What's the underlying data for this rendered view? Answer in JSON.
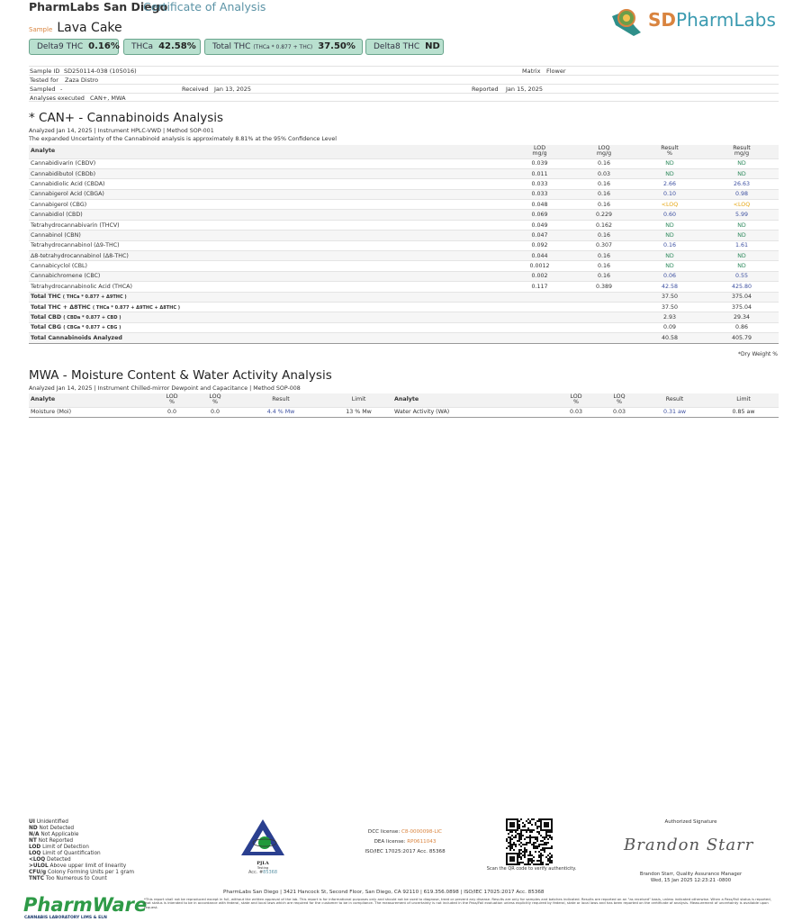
{
  "header": {
    "lab_name": "PharmLabs San Diego",
    "doc_title": "Certificate of Analysis",
    "sample_label": "Sample",
    "sample_name": "Lava Cake",
    "logo_text": "SDPharmLabs",
    "logo_arc_text": "PharmLabs"
  },
  "summary": [
    {
      "label": "Delta9 THC",
      "note": "",
      "value": "0.16%"
    },
    {
      "label": "THCa",
      "note": "",
      "value": "42.58%"
    },
    {
      "label": "Total THC",
      "note": "(THCa * 0.877 + THC)",
      "value": "37.50%"
    },
    {
      "label": "Delta8 THC",
      "note": "",
      "value": "ND"
    }
  ],
  "info": {
    "sample_id_label": "Sample ID",
    "sample_id": "SD250114-038 (105016)",
    "matrix_label": "Matrix",
    "matrix": "Flower",
    "tested_for_label": "Tested for",
    "tested_for": "Zaza Distro",
    "sampled_label": "Sampled",
    "sampled": "-",
    "received_label": "Received",
    "received": "Jan 13, 2025",
    "reported_label": "Reported",
    "reported": "Jan 15, 2025",
    "analyses_label": "Analyses executed",
    "analyses": "CAN+, MWA"
  },
  "can": {
    "title": "* CAN+ - Cannabinoids Analysis",
    "meta": "Analyzed Jan 14, 2025  | Instrument HPLC-VWD  | Method SOP-001",
    "uncertainty": "The expanded Uncertainty of the Cannabinoid analysis is approximately 8.81% at the 95% Confidence Level",
    "headers": {
      "analyte": "Analyte",
      "lod": "LOD",
      "lod_unit": "mg/g",
      "loq": "LOQ",
      "loq_unit": "mg/g",
      "res_pct": "Result",
      "res_pct_unit": "%",
      "res_mg": "Result",
      "res_mg_unit": "mg/g"
    },
    "rows": [
      {
        "analyte": "Cannabidivarin (CBDV)",
        "lod": "0.039",
        "loq": "0.16",
        "pct": "ND",
        "mg": "ND",
        "kind": "nd"
      },
      {
        "analyte": "Cannabidibutol (CBDb)",
        "lod": "0.011",
        "loq": "0.03",
        "pct": "ND",
        "mg": "ND",
        "kind": "nd"
      },
      {
        "analyte": "Cannabidiolic Acid (CBDA)",
        "lod": "0.033",
        "loq": "0.16",
        "pct": "2.66",
        "mg": "26.63",
        "kind": "val"
      },
      {
        "analyte": "Cannabigerol Acid (CBGA)",
        "lod": "0.033",
        "loq": "0.16",
        "pct": "0.10",
        "mg": "0.98",
        "kind": "val"
      },
      {
        "analyte": "Cannabigerol (CBG)",
        "lod": "0.048",
        "loq": "0.16",
        "pct": "<LOQ",
        "mg": "<LOQ",
        "kind": "loq"
      },
      {
        "analyte": "Cannabidiol (CBD)",
        "lod": "0.069",
        "loq": "0.229",
        "pct": "0.60",
        "mg": "5.99",
        "kind": "val"
      },
      {
        "analyte": "Tetrahydrocannabivarin (THCV)",
        "lod": "0.049",
        "loq": "0.162",
        "pct": "ND",
        "mg": "ND",
        "kind": "nd"
      },
      {
        "analyte": "Cannabinol (CBN)",
        "lod": "0.047",
        "loq": "0.16",
        "pct": "ND",
        "mg": "ND",
        "kind": "nd"
      },
      {
        "analyte": "Tetrahydrocannabinol (Δ9-THC)",
        "lod": "0.092",
        "loq": "0.307",
        "pct": "0.16",
        "mg": "1.61",
        "kind": "val"
      },
      {
        "analyte": "Δ8-tetrahydrocannabinol (Δ8-THC)",
        "lod": "0.044",
        "loq": "0.16",
        "pct": "ND",
        "mg": "ND",
        "kind": "nd"
      },
      {
        "analyte": "Cannabicyclol (CBL)",
        "lod": "0.0012",
        "loq": "0.16",
        "pct": "ND",
        "mg": "ND",
        "kind": "nd"
      },
      {
        "analyte": "Cannabichromene (CBC)",
        "lod": "0.002",
        "loq": "0.16",
        "pct": "0.06",
        "mg": "0.55",
        "kind": "val"
      },
      {
        "analyte": "Tetrahydrocannabinolic Acid (THCA)",
        "lod": "0.117",
        "loq": "0.389",
        "pct": "42.58",
        "mg": "425.80",
        "kind": "val"
      }
    ],
    "totals": [
      {
        "label": "Total THC",
        "formula": "( THCa * 0.877 + Δ9THC )",
        "pct": "37.50",
        "mg": "375.04"
      },
      {
        "label": "Total THC + Δ8THC",
        "formula": "( THCa * 0.877 + Δ9THC + Δ8THC )",
        "pct": "37.50",
        "mg": "375.04"
      },
      {
        "label": "Total CBD",
        "formula": "( CBDa * 0.877 + CBD )",
        "pct": "2.93",
        "mg": "29.34"
      },
      {
        "label": "Total CBG",
        "formula": "( CBGa * 0.877 + CBG )",
        "pct": "0.09",
        "mg": "0.86"
      },
      {
        "label": "Total Cannabinoids Analyzed",
        "formula": "",
        "pct": "40.58",
        "mg": "405.79"
      }
    ],
    "footnote": "*Dry Weight %"
  },
  "mwa": {
    "title": "MWA - Moisture Content & Water Activity Analysis",
    "meta": "Analyzed Jan 14, 2025  | Instrument Chilled-mirror Dewpoint and Capacitance  | Method SOP-008",
    "headers": {
      "analyte": "Analyte",
      "lod": "LOD",
      "loq": "LOQ",
      "unit": "%",
      "result": "Result",
      "limit": "Limit"
    },
    "moisture": {
      "analyte": "Moisture (Moi)",
      "lod": "0.0",
      "loq": "0.0",
      "result": "4.4 % Mw",
      "limit": "13 % Mw"
    },
    "water": {
      "analyte": "Water Activity (WA)",
      "lod": "0.03",
      "loq": "0.03",
      "result": "0.31 aw",
      "limit": "0.85 aw"
    }
  },
  "footer": {
    "legend": [
      [
        "UI",
        "Unidentified"
      ],
      [
        "ND",
        "Not Detected"
      ],
      [
        "N/A",
        "Not Applicable"
      ],
      [
        "NT",
        "Not Reported"
      ],
      [
        "LOD",
        "Limit of Detection"
      ],
      [
        "LOQ",
        "Limit of Quantification"
      ],
      [
        "<LOQ",
        "Detected"
      ],
      [
        ">ULOL",
        "Above upper limit of linearity"
      ],
      [
        "CFU/g",
        "Colony Forming Units per 1 gram"
      ],
      [
        "TNTC",
        "Too Numerous to Count"
      ]
    ],
    "pjla": "PJLA",
    "pjla_sub": "Testing",
    "pjla_acc_label": "Acc. #",
    "pjla_acc": "85368",
    "dcc_label": "DCC license:",
    "dcc": "C8-0000098-LIC",
    "dea_label": "DEA license:",
    "dea": "RP0611043",
    "iso": "ISO/IEC 17025:2017 Acc. 85368",
    "qr_caption": "Scan the QR code to verify authenticity.",
    "sig_label": "Authorized Signature",
    "signature": "Brandon Starr",
    "signer": "Brandon Starr, Quality Assurance Manager",
    "signed_at": "Wed, 15 Jan 2025 12:23:21 -0800",
    "address": "PharmLabs San Diego | 3421 Hancock St, Second Floor, San Diego, CA 92110 | 619.356.0898 | ISO/IEC 17025:2017 Acc. 85368",
    "disclaimer": "*This report shall not be reproduced except in full, without the written approval of the lab. This report is for informational purposes only and should not be used to diagnose, treat or prevent any disease. Results are only for samples and batches indicated. Results are reported on an \"as received\" basis, unless indicated otherwise. When a Pass/Fail status is reported, that status is intended to be in accordance with federal, state and local laws which are required for the customer to be in compliance. The measurement of uncertainty is not included in the Pass/Fail evaluation unless explicitly required by federal, state or local laws and has been reported on the certificate of analysis. Measurement of uncertainty is available upon request.",
    "pharmware": "PharmWare",
    "pharmware_sub": "CANNABIS LABORATORY LIMS & ELN"
  },
  "colors": {
    "accent": "#5b93a6",
    "pill_bg": "#b9e0cf",
    "nd": "#2e8a5c",
    "value": "#3c4fa0",
    "loq": "#e6a817",
    "orange": "#d9843f"
  }
}
